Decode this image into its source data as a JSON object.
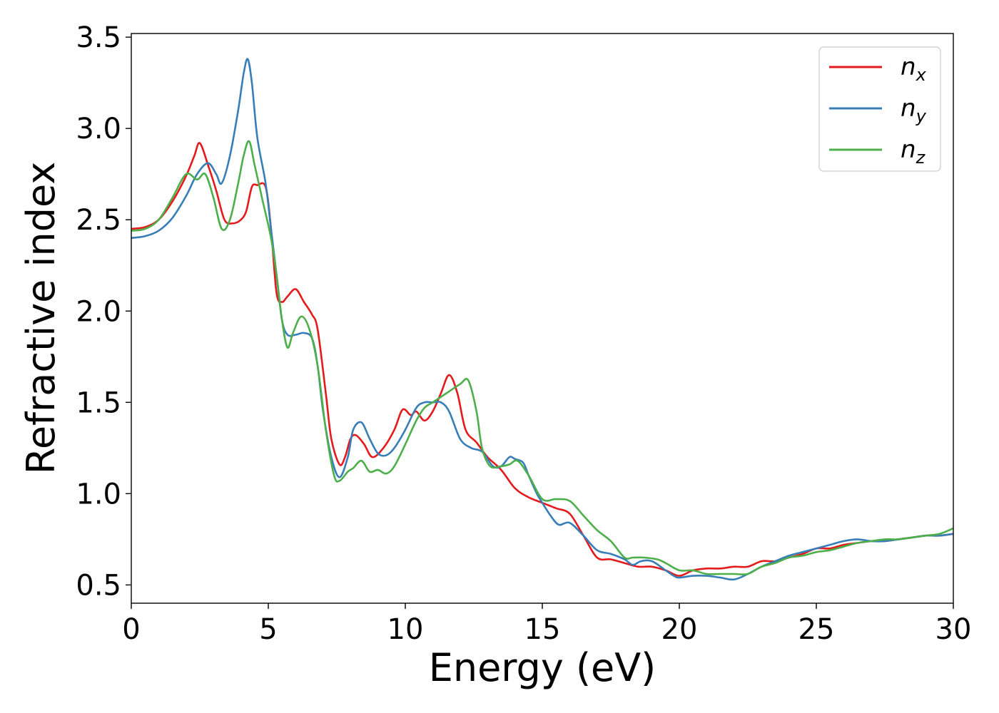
{
  "chart_data": {
    "type": "line",
    "title": "",
    "xlabel": "Energy (eV)",
    "ylabel": "Refractive index",
    "xlim": [
      0,
      30
    ],
    "ylim": [
      0.4,
      3.52
    ],
    "xticks": [
      0,
      5,
      10,
      15,
      20,
      25,
      30
    ],
    "yticks": [
      0.5,
      1.0,
      1.5,
      2.0,
      2.5,
      3.0,
      3.5
    ],
    "xtick_labels": [
      "0",
      "5",
      "10",
      "15",
      "20",
      "25",
      "30"
    ],
    "ytick_labels": [
      "0.5",
      "1.0",
      "1.5",
      "2.0",
      "2.5",
      "3.0",
      "3.5"
    ],
    "grid": false,
    "legend_position": "top-right",
    "series": [
      {
        "name": "n",
        "subscript": "x",
        "color": "#e41a1c",
        "points": [
          [
            0,
            2.45
          ],
          [
            0.5,
            2.46
          ],
          [
            1,
            2.5
          ],
          [
            1.5,
            2.6
          ],
          [
            2,
            2.74
          ],
          [
            2.3,
            2.85
          ],
          [
            2.5,
            2.92
          ],
          [
            2.8,
            2.8
          ],
          [
            3.1,
            2.66
          ],
          [
            3.4,
            2.5
          ],
          [
            3.7,
            2.48
          ],
          [
            4,
            2.5
          ],
          [
            4.2,
            2.55
          ],
          [
            4.4,
            2.68
          ],
          [
            4.6,
            2.69
          ],
          [
            4.9,
            2.68
          ],
          [
            5.1,
            2.45
          ],
          [
            5.3,
            2.1
          ],
          [
            5.5,
            2.05
          ],
          [
            5.7,
            2.08
          ],
          [
            6,
            2.12
          ],
          [
            6.3,
            2.05
          ],
          [
            6.6,
            1.98
          ],
          [
            6.8,
            1.9
          ],
          [
            7.1,
            1.55
          ],
          [
            7.3,
            1.3
          ],
          [
            7.6,
            1.16
          ],
          [
            7.8,
            1.2
          ],
          [
            8,
            1.3
          ],
          [
            8.2,
            1.32
          ],
          [
            8.5,
            1.27
          ],
          [
            8.8,
            1.2
          ],
          [
            9.2,
            1.25
          ],
          [
            9.6,
            1.35
          ],
          [
            9.9,
            1.46
          ],
          [
            10.2,
            1.43
          ],
          [
            10.4,
            1.45
          ],
          [
            10.7,
            1.4
          ],
          [
            11,
            1.45
          ],
          [
            11.3,
            1.55
          ],
          [
            11.6,
            1.65
          ],
          [
            11.9,
            1.55
          ],
          [
            12.2,
            1.35
          ],
          [
            12.6,
            1.28
          ],
          [
            13,
            1.2
          ],
          [
            13.5,
            1.13
          ],
          [
            14,
            1.03
          ],
          [
            14.5,
            0.98
          ],
          [
            15,
            0.95
          ],
          [
            15.5,
            0.92
          ],
          [
            16,
            0.89
          ],
          [
            16.5,
            0.77
          ],
          [
            17,
            0.65
          ],
          [
            17.5,
            0.64
          ],
          [
            18,
            0.62
          ],
          [
            18.5,
            0.6
          ],
          [
            19,
            0.6
          ],
          [
            19.5,
            0.58
          ],
          [
            20,
            0.55
          ],
          [
            20.5,
            0.58
          ],
          [
            21,
            0.59
          ],
          [
            21.5,
            0.59
          ],
          [
            22,
            0.6
          ],
          [
            22.5,
            0.6
          ],
          [
            23,
            0.63
          ],
          [
            23.5,
            0.63
          ],
          [
            24,
            0.65
          ],
          [
            24.5,
            0.67
          ],
          [
            25,
            0.7
          ],
          [
            25.5,
            0.7
          ],
          [
            26,
            0.72
          ],
          [
            26.5,
            0.73
          ],
          [
            27,
            0.74
          ],
          [
            27.5,
            0.74
          ],
          [
            28,
            0.75
          ],
          [
            28.5,
            0.76
          ],
          [
            29,
            0.77
          ],
          [
            29.5,
            0.77
          ],
          [
            30,
            0.78
          ]
        ]
      },
      {
        "name": "n",
        "subscript": "y",
        "color": "#377eb8",
        "points": [
          [
            0,
            2.4
          ],
          [
            0.5,
            2.41
          ],
          [
            1,
            2.44
          ],
          [
            1.5,
            2.51
          ],
          [
            2,
            2.63
          ],
          [
            2.4,
            2.75
          ],
          [
            2.8,
            2.81
          ],
          [
            3.1,
            2.75
          ],
          [
            3.3,
            2.7
          ],
          [
            3.6,
            2.85
          ],
          [
            3.9,
            3.1
          ],
          [
            4.1,
            3.3
          ],
          [
            4.25,
            3.38
          ],
          [
            4.4,
            3.25
          ],
          [
            4.6,
            2.95
          ],
          [
            4.9,
            2.7
          ],
          [
            5.1,
            2.45
          ],
          [
            5.3,
            2.2
          ],
          [
            5.5,
            1.95
          ],
          [
            5.7,
            1.87
          ],
          [
            6,
            1.87
          ],
          [
            6.3,
            1.88
          ],
          [
            6.6,
            1.85
          ],
          [
            6.8,
            1.7
          ],
          [
            7,
            1.45
          ],
          [
            7.3,
            1.2
          ],
          [
            7.6,
            1.09
          ],
          [
            7.9,
            1.2
          ],
          [
            8.1,
            1.35
          ],
          [
            8.4,
            1.39
          ],
          [
            8.7,
            1.3
          ],
          [
            9,
            1.22
          ],
          [
            9.3,
            1.21
          ],
          [
            9.6,
            1.25
          ],
          [
            10,
            1.35
          ],
          [
            10.4,
            1.47
          ],
          [
            10.7,
            1.5
          ],
          [
            11,
            1.5
          ],
          [
            11.3,
            1.5
          ],
          [
            11.6,
            1.45
          ],
          [
            12,
            1.3
          ],
          [
            12.4,
            1.25
          ],
          [
            12.8,
            1.23
          ],
          [
            13.2,
            1.15
          ],
          [
            13.5,
            1.15
          ],
          [
            13.8,
            1.2
          ],
          [
            14,
            1.19
          ],
          [
            14.3,
            1.17
          ],
          [
            14.5,
            1.1
          ],
          [
            14.8,
            1.0
          ],
          [
            15,
            0.95
          ],
          [
            15.3,
            0.88
          ],
          [
            15.6,
            0.83
          ],
          [
            16,
            0.84
          ],
          [
            16.5,
            0.77
          ],
          [
            17,
            0.69
          ],
          [
            17.5,
            0.67
          ],
          [
            18,
            0.64
          ],
          [
            18.3,
            0.61
          ],
          [
            18.6,
            0.63
          ],
          [
            19,
            0.63
          ],
          [
            19.5,
            0.58
          ],
          [
            19.8,
            0.55
          ],
          [
            20,
            0.54
          ],
          [
            20.5,
            0.55
          ],
          [
            21,
            0.55
          ],
          [
            21.5,
            0.54
          ],
          [
            22,
            0.53
          ],
          [
            22.5,
            0.56
          ],
          [
            23,
            0.6
          ],
          [
            23.5,
            0.63
          ],
          [
            24,
            0.66
          ],
          [
            24.5,
            0.68
          ],
          [
            25,
            0.7
          ],
          [
            25.5,
            0.72
          ],
          [
            26,
            0.74
          ],
          [
            26.5,
            0.75
          ],
          [
            27,
            0.74
          ],
          [
            27.5,
            0.74
          ],
          [
            28,
            0.75
          ],
          [
            28.5,
            0.76
          ],
          [
            29,
            0.77
          ],
          [
            29.5,
            0.77
          ],
          [
            30,
            0.78
          ]
        ]
      },
      {
        "name": "n",
        "subscript": "z",
        "color": "#4daf4a",
        "points": [
          [
            0,
            2.44
          ],
          [
            0.5,
            2.45
          ],
          [
            1,
            2.5
          ],
          [
            1.5,
            2.62
          ],
          [
            2,
            2.75
          ],
          [
            2.4,
            2.72
          ],
          [
            2.7,
            2.75
          ],
          [
            3,
            2.62
          ],
          [
            3.3,
            2.45
          ],
          [
            3.6,
            2.5
          ],
          [
            3.9,
            2.7
          ],
          [
            4.1,
            2.85
          ],
          [
            4.3,
            2.93
          ],
          [
            4.5,
            2.8
          ],
          [
            4.8,
            2.6
          ],
          [
            5.1,
            2.4
          ],
          [
            5.3,
            2.2
          ],
          [
            5.5,
            1.95
          ],
          [
            5.7,
            1.8
          ],
          [
            5.9,
            1.88
          ],
          [
            6.2,
            1.97
          ],
          [
            6.5,
            1.9
          ],
          [
            6.8,
            1.7
          ],
          [
            7.1,
            1.35
          ],
          [
            7.4,
            1.1
          ],
          [
            7.6,
            1.07
          ],
          [
            7.9,
            1.12
          ],
          [
            8.1,
            1.14
          ],
          [
            8.4,
            1.18
          ],
          [
            8.7,
            1.12
          ],
          [
            9,
            1.13
          ],
          [
            9.3,
            1.11
          ],
          [
            9.6,
            1.15
          ],
          [
            10,
            1.27
          ],
          [
            10.4,
            1.4
          ],
          [
            10.7,
            1.47
          ],
          [
            11,
            1.5
          ],
          [
            11.5,
            1.55
          ],
          [
            12,
            1.6
          ],
          [
            12.3,
            1.62
          ],
          [
            12.6,
            1.45
          ],
          [
            12.8,
            1.25
          ],
          [
            13.1,
            1.15
          ],
          [
            13.5,
            1.15
          ],
          [
            13.8,
            1.16
          ],
          [
            14.1,
            1.18
          ],
          [
            14.5,
            1.1
          ],
          [
            15,
            0.97
          ],
          [
            15.5,
            0.97
          ],
          [
            16,
            0.96
          ],
          [
            16.5,
            0.88
          ],
          [
            17,
            0.8
          ],
          [
            17.5,
            0.74
          ],
          [
            18,
            0.65
          ],
          [
            18.3,
            0.65
          ],
          [
            18.7,
            0.65
          ],
          [
            19.2,
            0.64
          ],
          [
            19.5,
            0.62
          ],
          [
            20,
            0.58
          ],
          [
            20.5,
            0.58
          ],
          [
            21,
            0.56
          ],
          [
            21.5,
            0.56
          ],
          [
            22,
            0.56
          ],
          [
            22.5,
            0.56
          ],
          [
            23,
            0.6
          ],
          [
            23.5,
            0.62
          ],
          [
            24,
            0.65
          ],
          [
            24.5,
            0.66
          ],
          [
            25,
            0.68
          ],
          [
            25.5,
            0.69
          ],
          [
            26,
            0.71
          ],
          [
            26.5,
            0.73
          ],
          [
            27,
            0.74
          ],
          [
            27.5,
            0.75
          ],
          [
            28,
            0.75
          ],
          [
            28.5,
            0.76
          ],
          [
            29,
            0.77
          ],
          [
            29.5,
            0.78
          ],
          [
            30,
            0.81
          ]
        ]
      }
    ]
  }
}
